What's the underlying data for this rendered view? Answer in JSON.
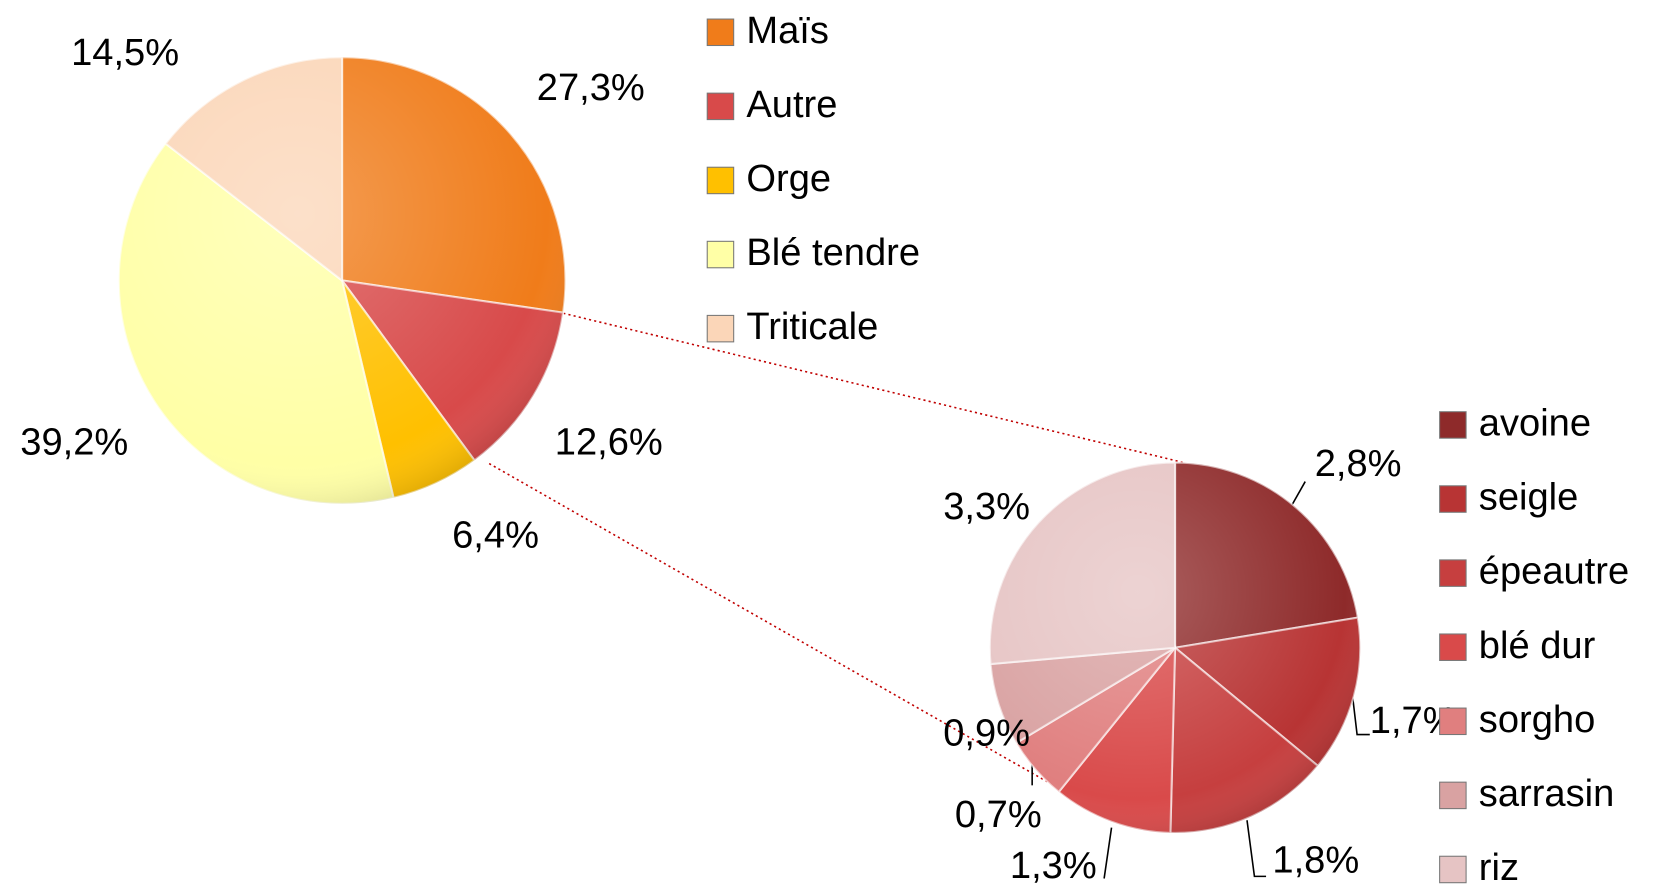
{
  "chart_data": [
    {
      "type": "pie",
      "categories": [
        "Maïs",
        "Autre",
        "Orge",
        "Blé tendre",
        "Triticale"
      ],
      "values": [
        27.3,
        12.6,
        6.4,
        39.2,
        14.5
      ],
      "value_labels": [
        "27,3%",
        "12,6%",
        "6,4%",
        "39,2%",
        "14,5%"
      ],
      "colors": [
        "#f07c1a",
        "#d84a4a",
        "#ffc000",
        "#ffffa6",
        "#fbd6b8"
      ]
    },
    {
      "type": "pie",
      "categories": [
        "avoine",
        "seigle",
        "épeautre",
        "blé dur",
        "sorgho",
        "sarrasin",
        "riz"
      ],
      "values": [
        2.8,
        1.7,
        1.8,
        1.3,
        0.7,
        0.9,
        3.3
      ],
      "value_labels": [
        "2,8%",
        "1,7%",
        "1,8%",
        "1,3%",
        "0,7%",
        "0,9%",
        "3,3%"
      ],
      "colors": [
        "#8e2a2a",
        "#b83434",
        "#c63f3f",
        "#d94a4a",
        "#e07f7f",
        "#d9a2a2",
        "#e6c4c4"
      ]
    }
  ]
}
